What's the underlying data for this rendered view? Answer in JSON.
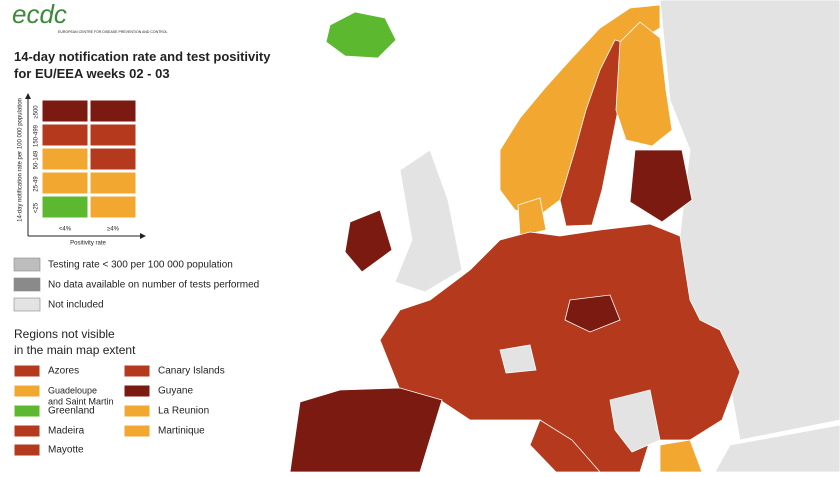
{
  "header": {
    "logo": "ecdc",
    "logo_subtitle": "EUROPEAN CENTRE FOR DISEASE PREVENTION AND CONTROL",
    "title": [
      "14-day notification rate and test positivity",
      "for EU/EEA weeks 02 - 03"
    ]
  },
  "matrix": {
    "y_label": "14-day notification rate per 100 000 population",
    "y_ticks": [
      "≥500",
      "150-499",
      "50-149",
      "25-49",
      "<25"
    ],
    "x_label": "Positivity rate",
    "x_ticks": [
      "<4%",
      "≥4%"
    ],
    "cells": [
      [
        "#7b1a10",
        "#7b1a10"
      ],
      [
        "#b5391c",
        "#b5391c"
      ],
      [
        "#f2a830",
        "#b5391c"
      ],
      [
        "#f2a830",
        "#f2a830"
      ],
      [
        "#5cb82e",
        "#f2a830"
      ]
    ]
  },
  "legend": {
    "items": [
      {
        "label": "Testing rate < 300 per 100 000 population",
        "color": "#bdbdbd"
      },
      {
        "label": "No data available on number of tests performed",
        "color": "#8a8a8a"
      },
      {
        "label": "Not included",
        "color": "#e3e3e3"
      }
    ]
  },
  "regions": {
    "title": [
      "Regions not visible",
      "in the main map extent"
    ],
    "items": [
      {
        "label": [
          "Azores"
        ],
        "color": "#b5391c"
      },
      {
        "label": [
          "Guadeloupe",
          "and Saint Martin"
        ],
        "color": "#f2a830"
      },
      {
        "label": [
          "Greenland"
        ],
        "color": "#5cb82e"
      },
      {
        "label": [
          "Madeira"
        ],
        "color": "#b5391c"
      },
      {
        "label": [
          "Mayotte"
        ],
        "color": "#b5391c"
      },
      {
        "label": [
          "Canary Islands"
        ],
        "color": "#b5391c"
      },
      {
        "label": [
          "Guyane"
        ],
        "color": "#7b1a10"
      },
      {
        "label": [
          "La Reunion"
        ],
        "color": "#f2a830"
      },
      {
        "label": [
          "Martinique"
        ],
        "color": "#f2a830"
      }
    ]
  }
}
